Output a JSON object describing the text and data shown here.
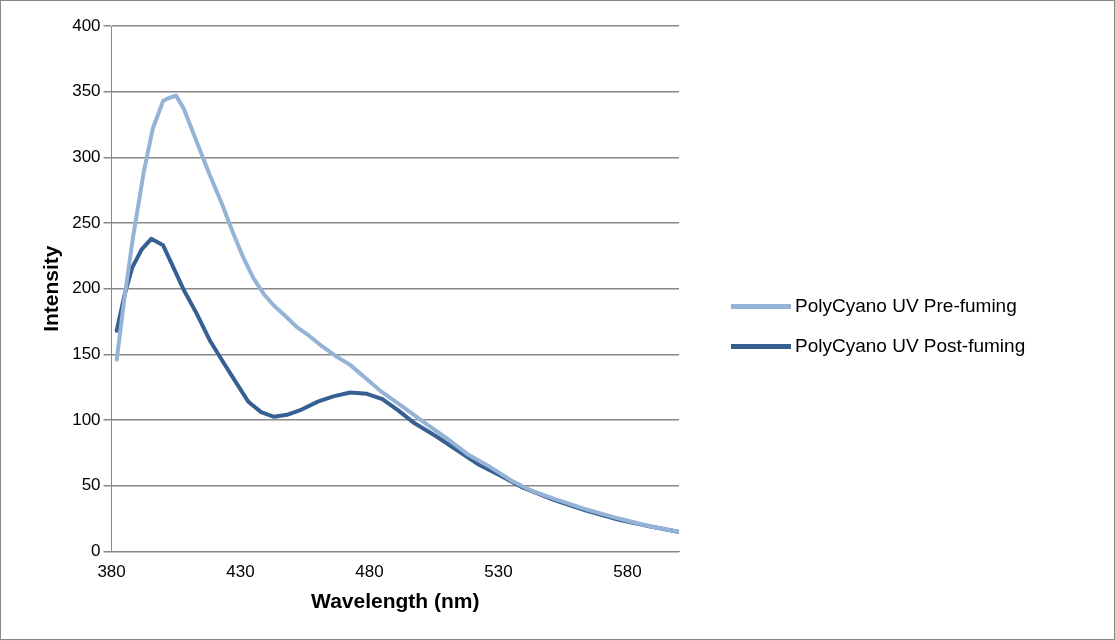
{
  "chart_data": {
    "type": "line",
    "xlabel": "Wavelength (nm)",
    "ylabel": "Intensity",
    "xlim": [
      380,
      600
    ],
    "xticks": [
      380,
      430,
      480,
      530,
      580
    ],
    "ylim": [
      0,
      400
    ],
    "yticks": [
      0,
      50,
      100,
      150,
      200,
      250,
      300,
      350,
      400
    ],
    "grid": "y",
    "legend": "right",
    "marker": "none",
    "line_style": "solid",
    "series": [
      {
        "name": "PolyCyano UV Pre-fuming",
        "color": "#95b3d7",
        "x": [
          382,
          385,
          388.3,
          392.5,
          396,
          400,
          402,
          405,
          408,
          411,
          414,
          418,
          422.5,
          427,
          431,
          435,
          439,
          443,
          447.5,
          451.7,
          456.7,
          461.7,
          466.7,
          472.5,
          479,
          485,
          493,
          501.7,
          510,
          518,
          527,
          535,
          543,
          551.7,
          564,
          576.7,
          589,
          600
        ],
        "values": [
          146,
          193,
          239,
          289,
          322,
          343,
          345,
          347,
          337,
          322,
          307,
          287,
          266,
          243,
          224,
          208,
          196,
          187,
          179,
          171,
          164,
          156,
          149,
          142,
          131,
          121,
          110,
          97.5,
          86,
          74,
          64,
          54,
          46,
          40,
          32,
          25,
          19,
          15
        ]
      },
      {
        "name": "PolyCyano UV Post-fuming",
        "color": "#376092",
        "x": [
          382,
          385,
          388,
          391.7,
          395.4,
          400,
          404,
          408,
          413,
          418,
          423,
          427.5,
          433,
          438,
          443,
          448,
          453.7,
          460,
          466,
          472.5,
          479,
          485,
          491,
          497.5,
          506,
          514,
          522.5,
          531,
          539,
          551.7,
          564,
          576.7,
          589,
          599.6
        ],
        "values": [
          168,
          195,
          216,
          230,
          238,
          233,
          216,
          199,
          181,
          161,
          145,
          131,
          114,
          106,
          102.5,
          104,
          108,
          114,
          118,
          121,
          120,
          116,
          107.5,
          97.5,
          87.5,
          77,
          66,
          57.5,
          49,
          39,
          31,
          24,
          19,
          15
        ]
      }
    ]
  }
}
